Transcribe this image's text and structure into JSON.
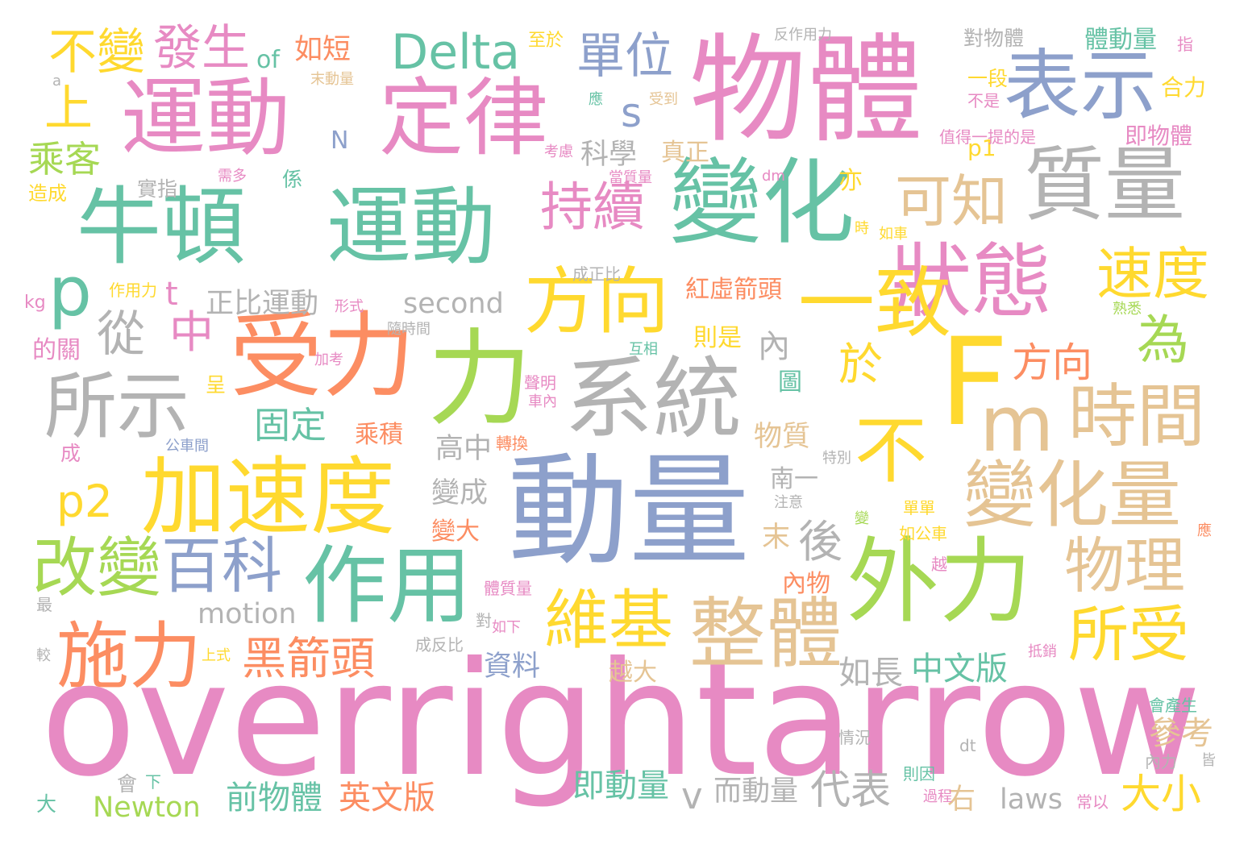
{
  "palette": {
    "green": "#66c2a5",
    "orange": "#fc8d62",
    "blue": "#8da0cb",
    "pink": "#e78ac3",
    "lime": "#a6d854",
    "yellow": "#ffd92f",
    "tan": "#e5c494",
    "gray": "#b3b3b3"
  },
  "words": [
    "overrightarrow",
    "動量",
    "物體",
    "運動",
    "定律",
    "牛頓",
    "運動",
    "變化",
    "質量",
    "受力",
    "力",
    "系統",
    "F",
    "m",
    "外力",
    "加速度",
    "狀態",
    "表示",
    "作用",
    "整體",
    "一致",
    "方向",
    "不",
    "變化量",
    "時間",
    "所示",
    "施力",
    "p",
    "改變",
    "維基",
    "物理",
    "所受",
    "速度",
    "百科",
    "可知",
    "持續",
    "Delta",
    "單位",
    "發生",
    "不變",
    "上",
    "黑箭頭",
    "從",
    "中",
    "為",
    "於",
    "後",
    "方向",
    "乘客",
    "固定",
    "p2",
    "代表",
    "大小",
    "s",
    "中文版",
    "如長",
    "英文版",
    "前物體",
    "即動量",
    "參考",
    "科學",
    "資料",
    "second",
    "motion",
    "laws",
    "Newton",
    "內",
    "正比運動",
    "t",
    "紅虛箭頭",
    "高中",
    "變成",
    "物質",
    "南一",
    "末",
    "乘積",
    "v",
    "而動量",
    "右",
    "越大",
    "如短",
    "of",
    "體動量",
    "p1",
    "即物體",
    "合力",
    "一段",
    "對物體",
    "N",
    "真正",
    "亦",
    "係",
    "變大",
    "內物",
    "則是",
    "圖",
    "大",
    "會",
    "下",
    "成",
    "呈",
    "至於",
    "反作用力",
    "指",
    "a",
    "末動量",
    "應",
    "受到",
    "不是",
    "值得一提的是",
    "考慮",
    "當質量",
    "dm",
    "造成",
    "實指",
    "需多",
    "時",
    "如車",
    "成正比",
    "作用力",
    "kg",
    "形式",
    "隨時間",
    "熟悉",
    "的關",
    "加考",
    "互相",
    "聲明",
    "車內",
    "轉換",
    "公車間",
    "特別",
    "注意",
    "單單",
    "如公車",
    "變",
    "應",
    "越",
    "體質量",
    "如下",
    "對",
    "最",
    "成反比",
    "上式",
    "較",
    "抵銷",
    "會產生",
    "情況",
    "dt",
    "則因",
    "過程",
    "常以",
    "內力",
    "皆"
  ]
}
